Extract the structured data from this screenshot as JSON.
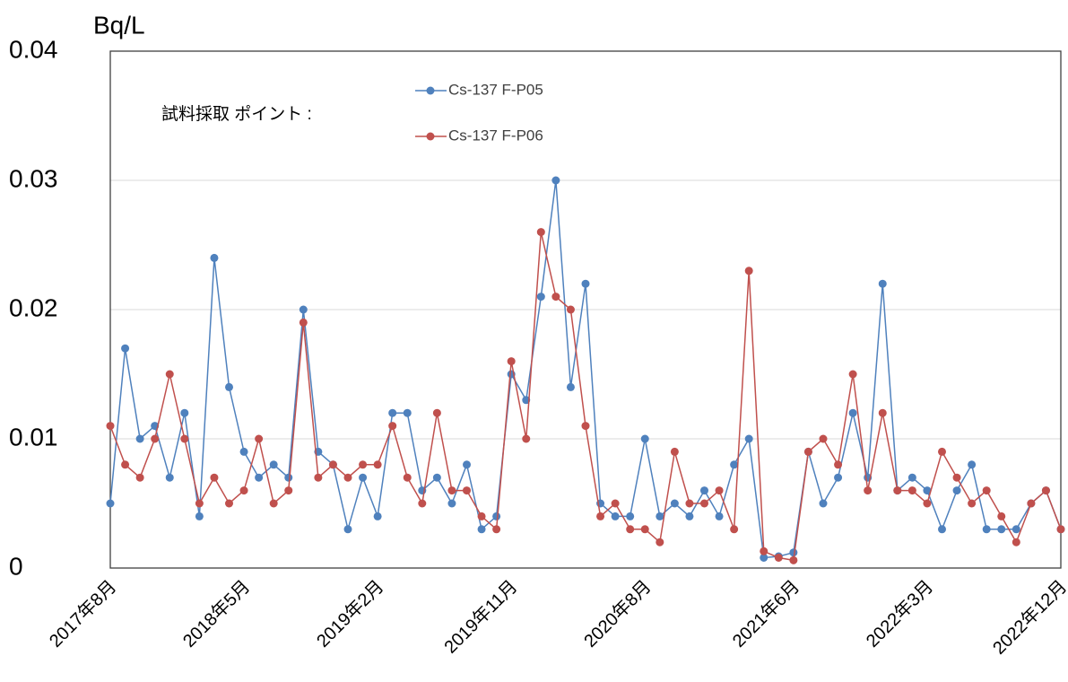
{
  "chart_data": {
    "type": "line",
    "y_label": "Bq/L",
    "annotation": "試料採取 ポイント :",
    "categories": [
      "2017年8月",
      null,
      null,
      null,
      null,
      null,
      null,
      null,
      null,
      "2018年5月",
      null,
      null,
      null,
      null,
      null,
      null,
      null,
      null,
      "2019年2月",
      null,
      null,
      null,
      null,
      null,
      null,
      null,
      null,
      "2019年11月",
      null,
      null,
      null,
      null,
      null,
      null,
      null,
      null,
      "2020年8月",
      null,
      null,
      null,
      null,
      null,
      null,
      null,
      null,
      null,
      "2021年6月",
      null,
      null,
      null,
      null,
      null,
      null,
      null,
      null,
      "2022年3月",
      null,
      null,
      null,
      null,
      null,
      null,
      null,
      null,
      "2022年12月"
    ],
    "series": [
      {
        "name": "Cs-137 F-P05",
        "color": "#4f81bd",
        "values": [
          0.005,
          0.017,
          0.01,
          0.011,
          0.007,
          0.012,
          0.004,
          0.024,
          0.014,
          0.009,
          0.007,
          0.008,
          0.007,
          0.02,
          0.009,
          0.008,
          0.003,
          0.007,
          0.004,
          0.012,
          0.012,
          0.006,
          0.007,
          0.005,
          0.008,
          0.003,
          0.004,
          0.015,
          0.013,
          0.021,
          0.03,
          0.014,
          0.022,
          0.005,
          0.004,
          0.004,
          0.01,
          0.004,
          0.005,
          0.004,
          0.006,
          0.004,
          0.008,
          0.01,
          0.0008,
          0.0009,
          0.0012,
          0.009,
          0.005,
          0.007,
          0.012,
          0.007,
          0.022,
          0.006,
          0.007,
          0.006,
          0.003,
          0.006,
          0.008,
          0.003,
          0.003,
          0.003,
          0.005,
          0.006,
          0.003
        ]
      },
      {
        "name": "Cs-137 F-P06",
        "color": "#c0504d",
        "values": [
          0.011,
          0.008,
          0.007,
          0.01,
          0.015,
          0.01,
          0.005,
          0.007,
          0.005,
          0.006,
          0.01,
          0.005,
          0.006,
          0.019,
          0.007,
          0.008,
          0.007,
          0.008,
          0.008,
          0.011,
          0.007,
          0.005,
          0.012,
          0.006,
          0.006,
          0.004,
          0.003,
          0.016,
          0.01,
          0.026,
          0.021,
          0.02,
          0.011,
          0.004,
          0.005,
          0.003,
          0.003,
          0.002,
          0.009,
          0.005,
          0.005,
          0.006,
          0.003,
          0.023,
          0.0013,
          0.0008,
          0.0006,
          0.009,
          0.01,
          0.008,
          0.015,
          0.006,
          0.012,
          0.006,
          0.006,
          0.005,
          0.009,
          0.007,
          0.005,
          0.006,
          0.004,
          0.002,
          0.005,
          0.006,
          0.003
        ]
      }
    ],
    "ylim": [
      0,
      0.04
    ],
    "yticks": [
      0,
      0.01,
      0.02,
      0.03,
      0.04
    ],
    "grid": true
  }
}
